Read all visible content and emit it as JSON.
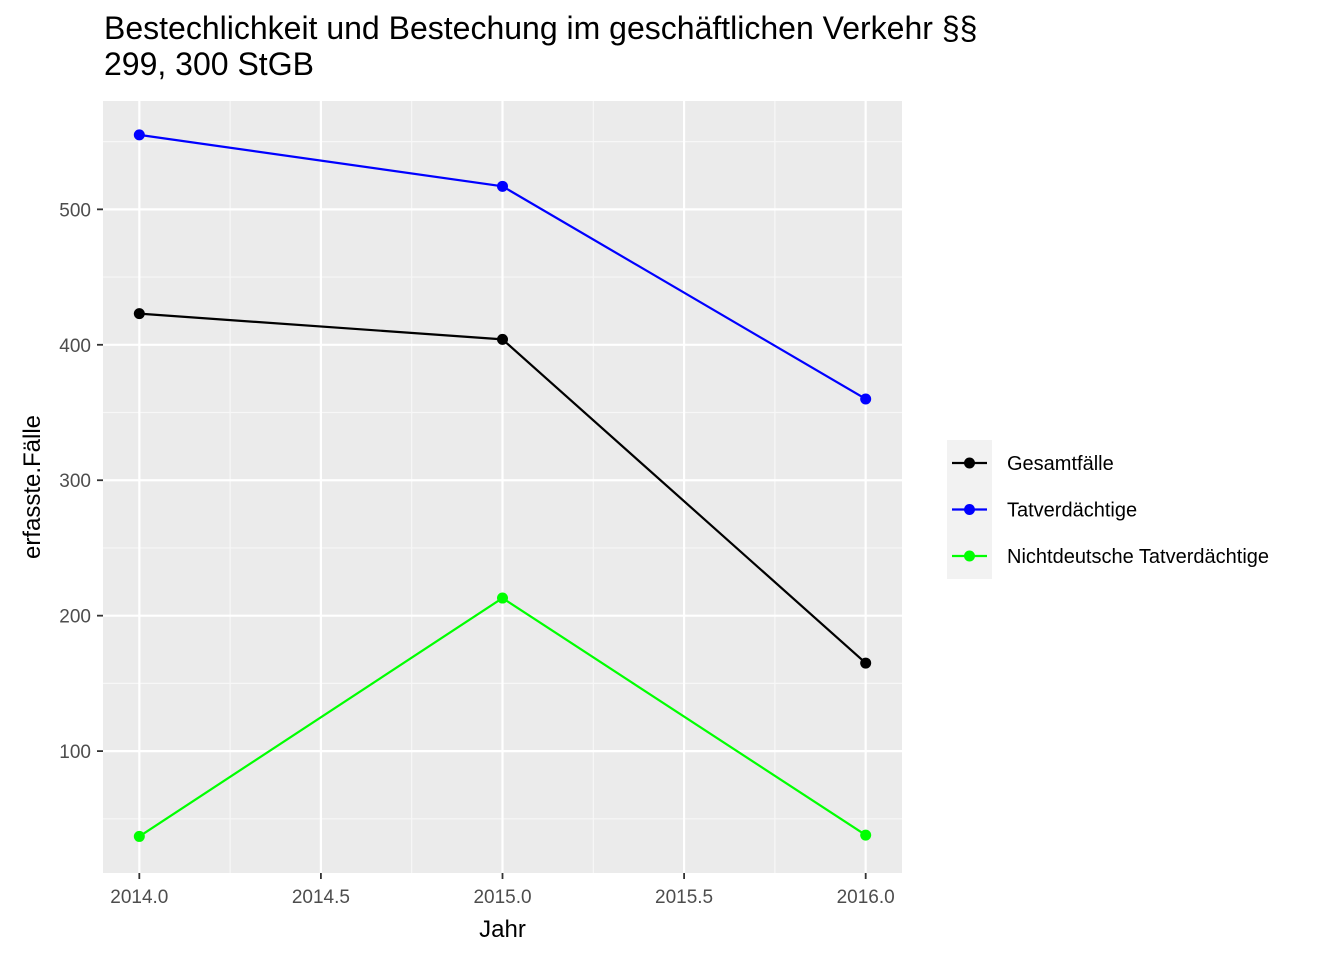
{
  "chart_data": {
    "type": "line",
    "title_lines": [
      "Bestechlichkeit und Bestechung im geschäftlichen Verkehr §§",
      "299, 300 StGB"
    ],
    "xlabel": "Jahr",
    "ylabel": "erfasste.Fälle",
    "x": [
      2014,
      2015,
      2016
    ],
    "x_ticks": [
      "2014.0",
      "2014.5",
      "2015.0",
      "2015.5",
      "2016.0"
    ],
    "x_tick_values": [
      2014.0,
      2014.5,
      2015.0,
      2015.5,
      2016.0
    ],
    "y_ticks": [
      "100",
      "200",
      "300",
      "400",
      "500"
    ],
    "y_tick_values": [
      100,
      200,
      300,
      400,
      500
    ],
    "xlim": [
      2013.9,
      2016.1
    ],
    "ylim": [
      10,
      580
    ],
    "grid": true,
    "legend_position": "right",
    "series": [
      {
        "name": "Gesamtfälle",
        "color": "#000000",
        "values": [
          423,
          404,
          165
        ]
      },
      {
        "name": "Tatverdächtige",
        "color": "#0000FF",
        "values": [
          555,
          517,
          360
        ]
      },
      {
        "name": "Nichtdeutsche Tatverdächtige",
        "color": "#00FF00",
        "values": [
          37,
          213,
          38
        ]
      }
    ]
  }
}
